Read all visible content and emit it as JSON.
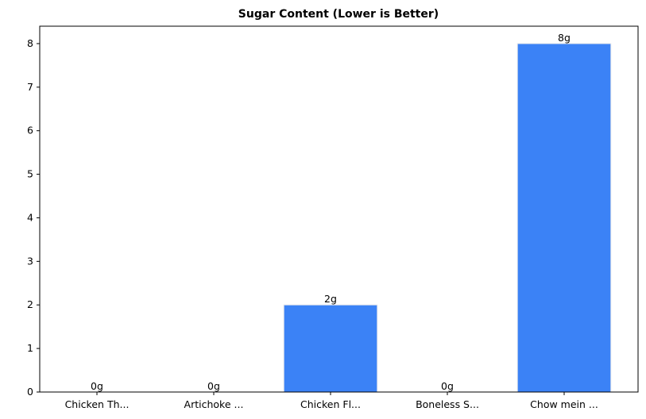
{
  "chart_data": {
    "type": "bar",
    "title": "Sugar Content (Lower is Better)",
    "categories": [
      "Chicken Th...",
      "Artichoke ...",
      "Chicken Fl...",
      "Boneless S...",
      "Chow mein ..."
    ],
    "values": [
      0,
      0,
      2,
      0,
      8
    ],
    "value_labels": [
      "0g",
      "0g",
      "2g",
      "0g",
      "8g"
    ],
    "color": "#3b82f6",
    "ylim": [
      0,
      8.4
    ],
    "yticks": [
      0,
      1,
      2,
      3,
      4,
      5,
      6,
      7,
      8
    ],
    "grid": false
  }
}
